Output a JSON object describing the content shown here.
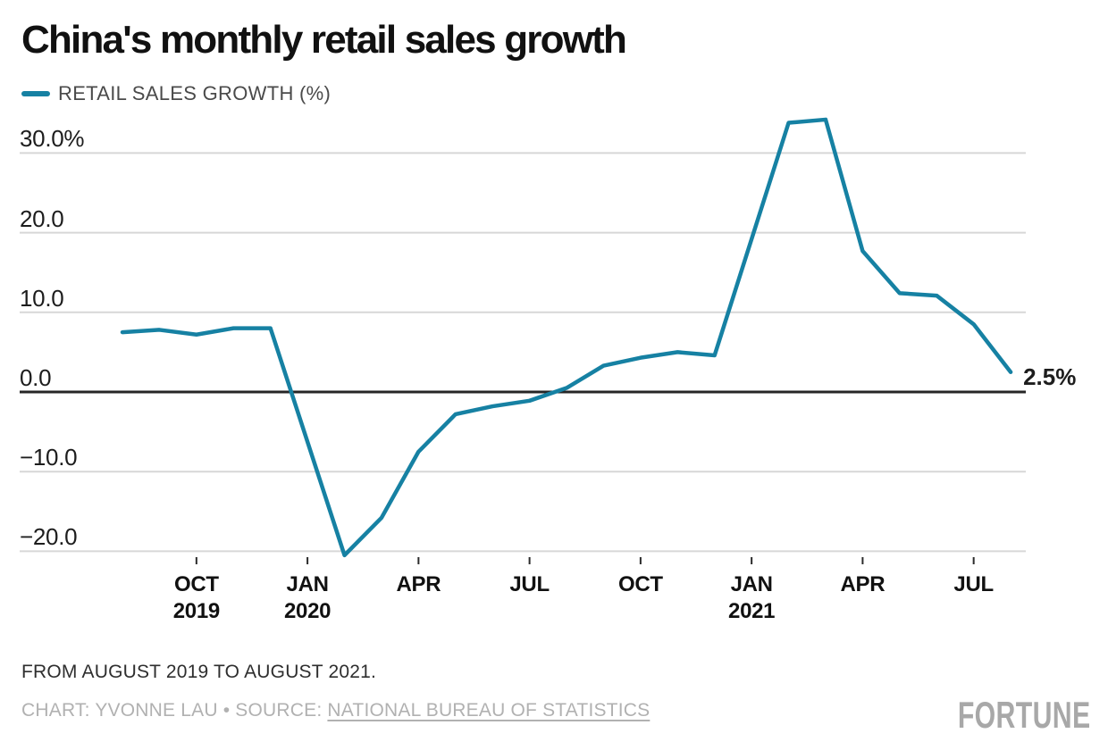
{
  "title": "China's monthly retail sales growth",
  "legend": {
    "label": "RETAIL SALES GROWTH (%)"
  },
  "chart_data": {
    "type": "line",
    "title": "China's monthly retail sales growth",
    "grid": "horizontal",
    "legend_position": "top-left",
    "ylim": [
      -22.5,
      35.5
    ],
    "x_range": [
      "AUG 2019",
      "AUG 2021"
    ],
    "series": [
      {
        "name": "RETAIL SALES GROWTH (%)",
        "color": "#1681a3",
        "x": [
          "AUG 2019",
          "SEP 2019",
          "OCT 2019",
          "NOV 2019",
          "DEC 2019",
          "JAN–FEB 2020",
          "MAR 2020",
          "APR 2020",
          "MAY 2020",
          "JUN 2020",
          "JUL 2020",
          "AUG 2020",
          "SEP 2020",
          "OCT 2020",
          "NOV 2020",
          "DEC 2020",
          "JAN–FEB 2021",
          "MAR 2021",
          "APR 2021",
          "MAY 2021",
          "JUN 2021",
          "JUL 2021",
          "AUG 2021"
        ],
        "month_offset_from_aug_2019": [
          0,
          1,
          2,
          3,
          4,
          6,
          7,
          8,
          9,
          10,
          11,
          12,
          13,
          14,
          15,
          16,
          18,
          19,
          20,
          21,
          22,
          23,
          24
        ],
        "values": [
          7.5,
          7.8,
          7.2,
          8.0,
          8.0,
          -20.5,
          -15.8,
          -7.5,
          -2.8,
          -1.8,
          -1.1,
          0.5,
          3.3,
          4.3,
          5.0,
          4.6,
          33.8,
          34.2,
          17.7,
          12.4,
          12.1,
          8.5,
          2.5
        ]
      }
    ]
  },
  "y_axis": {
    "ticks": [
      {
        "label": "30.0%",
        "value": 30
      },
      {
        "label": "20.0",
        "value": 20
      },
      {
        "label": "10.0",
        "value": 10
      },
      {
        "label": "0.0",
        "value": 0
      },
      {
        "label": "−10.0",
        "value": -10
      },
      {
        "label": "−20.0",
        "value": -20
      }
    ]
  },
  "x_axis": {
    "ticks": [
      {
        "label": "OCT",
        "year": "2019",
        "m": 2
      },
      {
        "label": "JAN",
        "year": "2020",
        "m": 5
      },
      {
        "label": "APR",
        "year": "",
        "m": 8
      },
      {
        "label": "JUL",
        "year": "",
        "m": 11
      },
      {
        "label": "OCT",
        "year": "",
        "m": 14
      },
      {
        "label": "JAN",
        "year": "2021",
        "m": 17
      },
      {
        "label": "APR",
        "year": "",
        "m": 20
      },
      {
        "label": "JUL",
        "year": "",
        "m": 23
      }
    ]
  },
  "annotations": {
    "end_value_label": "2.5%"
  },
  "footer": {
    "note": "FROM AUGUST 2019 TO AUGUST 2021.",
    "credit_prefix": "CHART: YVONNE LAU • SOURCE: ",
    "source_link": "NATIONAL BUREAU OF STATISTICS",
    "brand": "FORTUNE"
  },
  "colors": {
    "line": "#1681a3",
    "grid": "#d7d7d7",
    "zero_line": "#262626",
    "tick": "#2b2b2b"
  }
}
